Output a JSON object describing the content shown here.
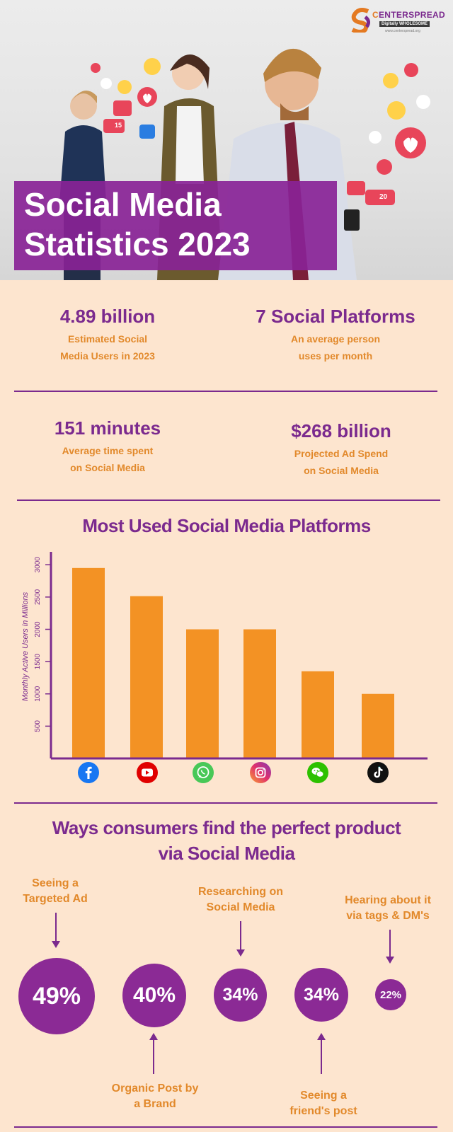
{
  "logo": {
    "name_c": "C",
    "name_rest": "ENTERSPREAD",
    "tagline": "Digitally WHOLESOME",
    "url": "www.centerspread.org"
  },
  "hero": {
    "title_line1": "Social Media",
    "title_line2": "Statistics 2023",
    "reaction_counts": [
      "15",
      "20"
    ]
  },
  "stats": [
    {
      "value": "4.89 billion",
      "label_line1": "Estimated Social",
      "label_line2": "Media Users in 2023"
    },
    {
      "value": "7 Social Platforms",
      "label_line1": "An average person",
      "label_line2": "uses per month"
    },
    {
      "value": "151 minutes",
      "label_line1": "Average time spent",
      "label_line2": "on Social Media"
    },
    {
      "value": "$268 billion",
      "label_line1": "Projected Ad Spend",
      "label_line2": "on Social Media"
    }
  ],
  "chart_data": {
    "type": "bar",
    "title": "Most Used Social Media Platforms",
    "ylabel": "Monthly Active Users in Millions",
    "categories": [
      "facebook",
      "youtube",
      "whatsapp",
      "instagram",
      "wechat",
      "tiktok"
    ],
    "values": [
      2950,
      2514,
      2000,
      2000,
      1350,
      1000
    ],
    "yticks": [
      500,
      1000,
      1500,
      2000,
      2500,
      3000
    ],
    "ylim": [
      0,
      3200
    ],
    "bar_color": "#f39224",
    "axis_color": "#7b2a8e",
    "grid": false
  },
  "ways": {
    "title_line1": "Ways consumers find the perfect product",
    "title_line2": "via Social Media",
    "items": [
      {
        "percent": "49%",
        "label_line1": "Seeing a",
        "label_line2": "Targeted Ad",
        "value": 49
      },
      {
        "percent": "40%",
        "label_line1": "Organic Post by",
        "label_line2": "a Brand",
        "value": 40
      },
      {
        "percent": "34%",
        "label_line1": "Researching on",
        "label_line2": "Social Media",
        "value": 34
      },
      {
        "percent": "34%",
        "label_line1": "Seeing a",
        "label_line2": "friend's post",
        "value": 34
      },
      {
        "percent": "22%",
        "label_line1": "Hearing about it",
        "label_line2": "via tags & DM's",
        "value": 22
      }
    ]
  },
  "colors": {
    "purple": "#7b2a8e",
    "orange": "#f39224",
    "background": "#fde5cf"
  }
}
